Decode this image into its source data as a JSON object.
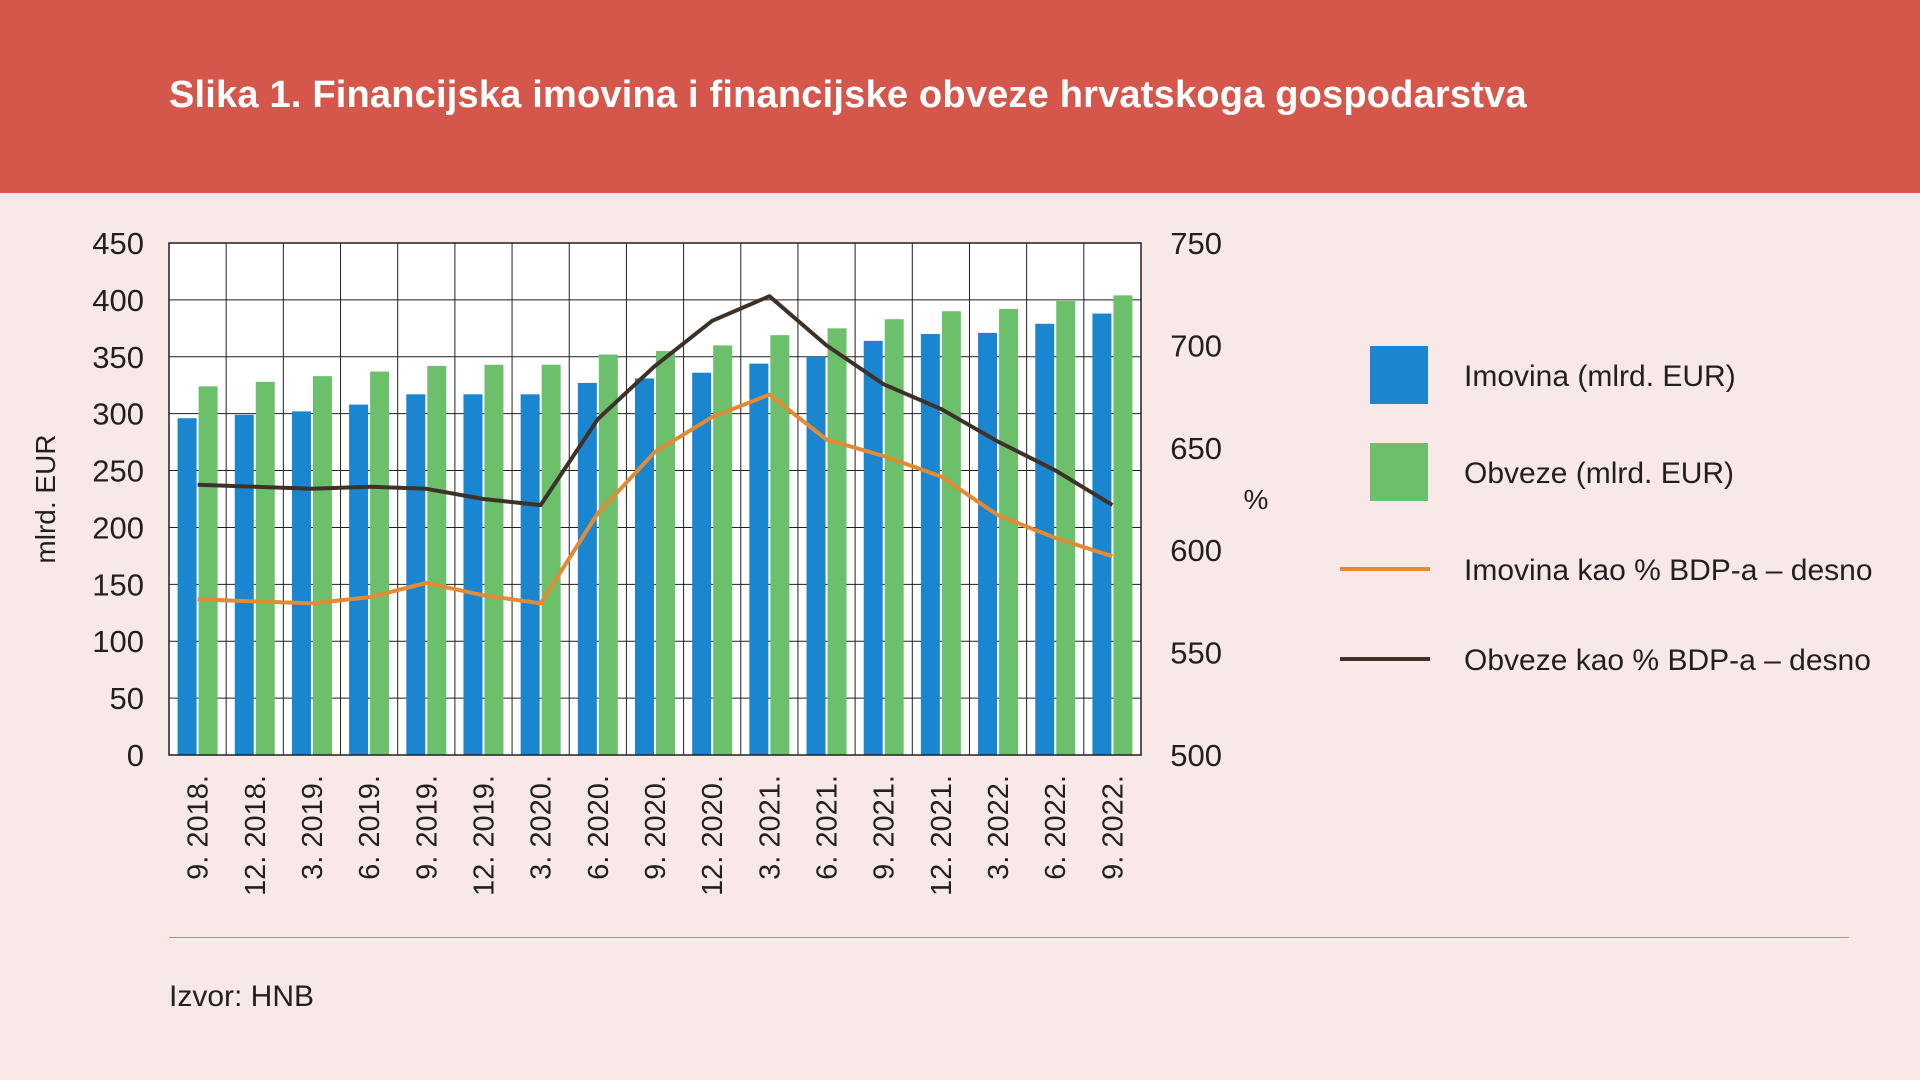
{
  "title": "Slika 1. Financijska imovina i financijske obveze hrvatskoga gospodarstva",
  "source": "Izvor: HNB",
  "chart_data": {
    "type": "bar",
    "categories": [
      "9. 2018.",
      "12. 2018.",
      "3. 2019.",
      "6. 2019.",
      "9. 2019.",
      "12. 2019.",
      "3. 2020.",
      "6. 2020.",
      "9. 2020.",
      "12. 2020.",
      "3. 2021.",
      "6. 2021.",
      "9. 2021.",
      "12. 2021.",
      "3. 2022.",
      "6. 2022.",
      "9. 2022."
    ],
    "ylabel_left": "mlrd. EUR",
    "ylabel_right": "%",
    "ylim_left": [
      0,
      450
    ],
    "yticks_left": [
      "0",
      "50",
      "100",
      "150",
      "200",
      "250",
      "300",
      "350",
      "400",
      "450"
    ],
    "ylim_right": [
      500,
      750
    ],
    "yticks_right": [
      "500",
      "550",
      "600",
      "650",
      "700",
      "750"
    ],
    "grid": true,
    "legend_position": "right",
    "series": [
      {
        "name": "Imovina (mlrd. EUR)",
        "type": "bar",
        "axis": "left",
        "color": "#1b86d0",
        "values": [
          296,
          299,
          302,
          308,
          317,
          317,
          317,
          327,
          331,
          336,
          344,
          350,
          364,
          370,
          371,
          379,
          388
        ]
      },
      {
        "name": "Obveze (mlrd. EUR)",
        "type": "bar",
        "axis": "left",
        "color": "#6cc06b",
        "values": [
          324,
          328,
          333,
          337,
          342,
          343,
          343,
          352,
          355,
          360,
          369,
          375,
          383,
          390,
          392,
          399,
          404
        ]
      },
      {
        "name": "Imovina kao % BDP-a – desno",
        "type": "line",
        "axis": "right",
        "color": "#e38a34",
        "values": [
          576,
          575,
          574,
          577,
          584,
          578,
          574,
          618,
          648,
          665,
          676,
          654,
          646,
          636,
          617,
          606,
          597
        ]
      },
      {
        "name": "Obveze kao % BDP-a – desno",
        "type": "line",
        "axis": "right",
        "color": "#3d3229",
        "values": [
          632,
          631,
          630,
          631,
          630,
          625,
          622,
          664,
          690,
          712,
          724,
          700,
          681,
          669,
          653,
          639,
          622
        ]
      }
    ]
  }
}
